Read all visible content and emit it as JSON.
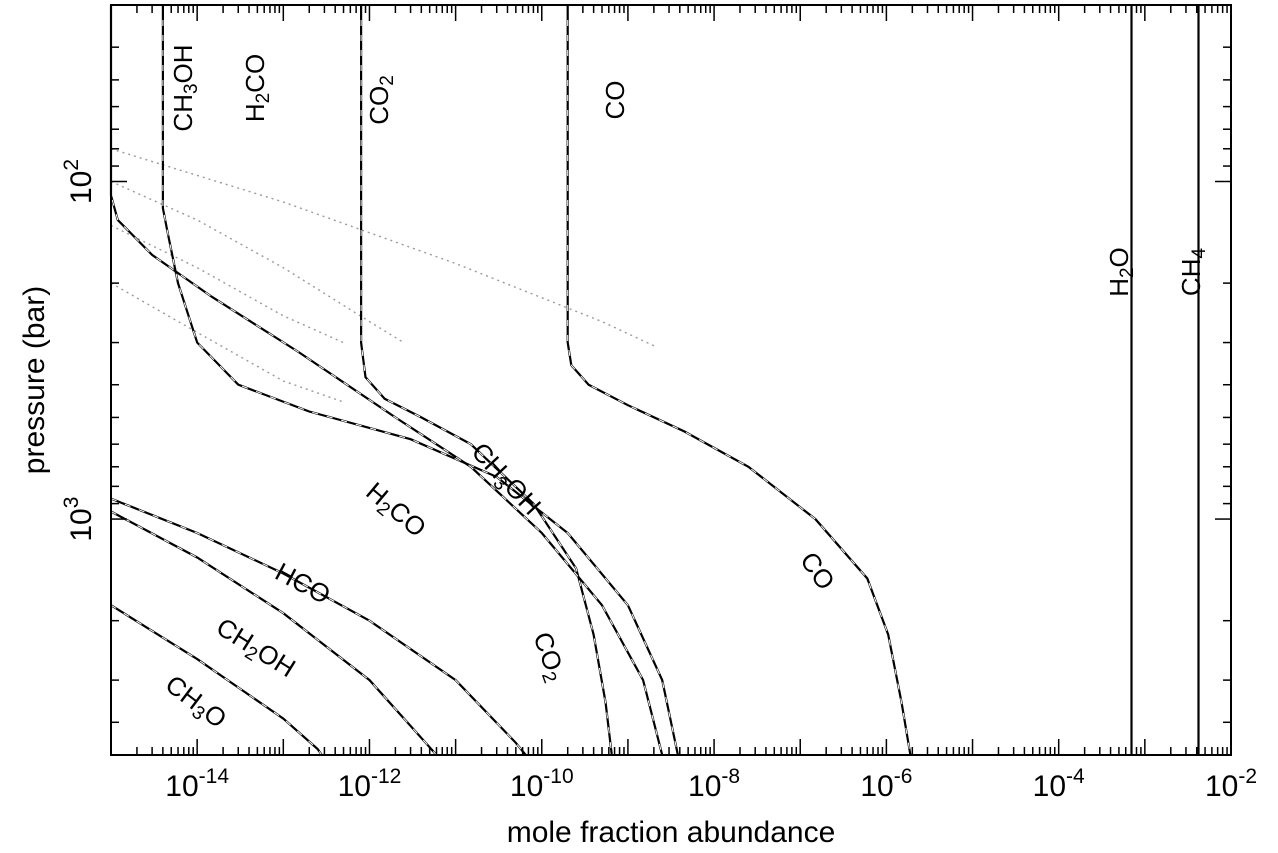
{
  "chart_data": {
    "type": "line",
    "xlabel": "mole fraction abundance",
    "ylabel": "pressure (bar)",
    "x_scale": "log",
    "y_scale": "log",
    "y_inverted": true,
    "xlim": [
      1e-15,
      0.01
    ],
    "ylim": [
      5000,
      30
    ],
    "x_tick_labels": [
      {
        "base": "10",
        "exp": "-14",
        "value": 1e-14
      },
      {
        "base": "10",
        "exp": "-12",
        "value": 1e-12
      },
      {
        "base": "10",
        "exp": "-10",
        "value": 1e-10
      },
      {
        "base": "10",
        "exp": "-8",
        "value": 1e-08
      },
      {
        "base": "10",
        "exp": "-6",
        "value": 1e-06
      },
      {
        "base": "10",
        "exp": "-4",
        "value": 0.0001
      },
      {
        "base": "10",
        "exp": "-2",
        "value": 0.01
      }
    ],
    "y_tick_labels": [
      {
        "base": "10",
        "exp": "2",
        "value": 100
      },
      {
        "base": "10",
        "exp": "3",
        "value": 1000
      }
    ],
    "colors": {
      "kinetics": "#000000",
      "equilibrium": "#ffffff",
      "quench_guide": "#9a9a9a"
    },
    "series": [
      {
        "name": "CH4",
        "label_main": "CH",
        "label_sub": "4",
        "label_tail": "",
        "points": [
          [
            0.0042,
            30
          ],
          [
            0.0042,
            5000
          ]
        ]
      },
      {
        "name": "H2O",
        "label_main": "H",
        "label_sub": "2",
        "label_tail": "O",
        "points": [
          [
            0.0007,
            30
          ],
          [
            0.0007,
            5000
          ]
        ]
      },
      {
        "name": "CO",
        "label_main": "CO",
        "label_sub": "",
        "label_tail": "",
        "points": [
          [
            2e-10,
            30
          ],
          [
            2e-10,
            300
          ],
          [
            2.2e-10,
            350
          ],
          [
            3.5e-10,
            400
          ],
          [
            1e-09,
            460
          ],
          [
            4.5e-09,
            550
          ],
          [
            2.5e-08,
            700
          ],
          [
            1.5e-07,
            1000
          ],
          [
            6e-07,
            1500
          ],
          [
            1.05e-06,
            2200
          ],
          [
            1.5e-06,
            3500
          ],
          [
            1.9e-06,
            5000
          ]
        ]
      },
      {
        "name": "CO2",
        "label_main": "CO",
        "label_sub": "2",
        "label_tail": "",
        "points": [
          [
            8e-13,
            30
          ],
          [
            8e-13,
            300
          ],
          [
            9e-13,
            380
          ],
          [
            1.5e-12,
            440
          ],
          [
            4e-12,
            500
          ],
          [
            1.5e-11,
            600
          ],
          [
            8e-11,
            900
          ],
          [
            2.5e-10,
            1400
          ],
          [
            4e-10,
            2200
          ],
          [
            5.5e-10,
            3500
          ],
          [
            6.5e-10,
            5000
          ]
        ]
      },
      {
        "name": "H2CO",
        "label_main": "H",
        "label_sub": "2",
        "label_tail": "CO",
        "points": [
          [
            4e-15,
            30
          ],
          [
            4e-15,
            120
          ],
          [
            4.5e-15,
            140
          ],
          [
            6e-15,
            200
          ],
          [
            1e-14,
            300
          ],
          [
            3e-14,
            400
          ],
          [
            2e-13,
            480
          ],
          [
            3e-12,
            580
          ],
          [
            3e-11,
            750
          ],
          [
            2e-10,
            1100
          ],
          [
            1e-09,
            1800
          ],
          [
            2.5e-09,
            3000
          ],
          [
            3.8e-09,
            5000
          ]
        ]
      },
      {
        "name": "CH3OH",
        "label_main": "CH",
        "label_sub": "3",
        "label_tail": "OH",
        "points": [
          [
            1e-15,
            30
          ],
          [
            1e-15,
            110
          ],
          [
            1.2e-15,
            130
          ],
          [
            3e-15,
            165
          ],
          [
            1.5e-14,
            220
          ],
          [
            1.5e-13,
            320
          ],
          [
            2e-12,
            500
          ],
          [
            1.5e-11,
            700
          ],
          [
            1e-10,
            1100
          ],
          [
            5e-10,
            1800
          ],
          [
            1.5e-09,
            3000
          ],
          [
            2.5e-09,
            5000
          ]
        ]
      },
      {
        "name": "HCO",
        "label_main": "HCO",
        "label_sub": "",
        "label_tail": "",
        "points": [
          [
            1e-15,
            870
          ],
          [
            1e-14,
            1100
          ],
          [
            1e-13,
            1450
          ],
          [
            1e-12,
            2000
          ],
          [
            1e-11,
            3000
          ],
          [
            5e-11,
            4600
          ],
          [
            6.5e-11,
            5000
          ]
        ]
      },
      {
        "name": "CH2OH",
        "label_main": "CH",
        "label_sub": "2",
        "label_tail": "OH",
        "points": [
          [
            1e-15,
            950
          ],
          [
            1e-14,
            1300
          ],
          [
            1e-13,
            1900
          ],
          [
            1e-12,
            3000
          ],
          [
            4.5e-12,
            4600
          ],
          [
            6e-12,
            5000
          ]
        ]
      },
      {
        "name": "CH3O",
        "label_main": "CH",
        "label_sub": "3",
        "label_tail": "O",
        "points": [
          [
            1e-15,
            1800
          ],
          [
            1e-14,
            2600
          ],
          [
            1e-13,
            3900
          ],
          [
            2.5e-13,
            4800
          ],
          [
            2.8e-13,
            5000
          ]
        ]
      }
    ],
    "quench_guides": [
      {
        "points": [
          [
            1e-15,
            80
          ],
          [
            1e-13,
            115
          ],
          [
            1e-11,
            175
          ],
          [
            5e-10,
            260
          ],
          [
            2.2e-09,
            310
          ]
        ]
      },
      {
        "points": [
          [
            1e-15,
            100
          ],
          [
            1e-14,
            130
          ],
          [
            1e-13,
            180
          ],
          [
            1e-12,
            260
          ],
          [
            2.5e-12,
            300
          ]
        ]
      },
      {
        "points": [
          [
            1e-15,
            135
          ],
          [
            1e-14,
            180
          ],
          [
            1e-13,
            250
          ],
          [
            5e-13,
            300
          ]
        ]
      },
      {
        "points": [
          [
            1e-15,
            200
          ],
          [
            1e-14,
            280
          ],
          [
            1e-13,
            390
          ],
          [
            5e-13,
            450
          ]
        ]
      }
    ]
  }
}
